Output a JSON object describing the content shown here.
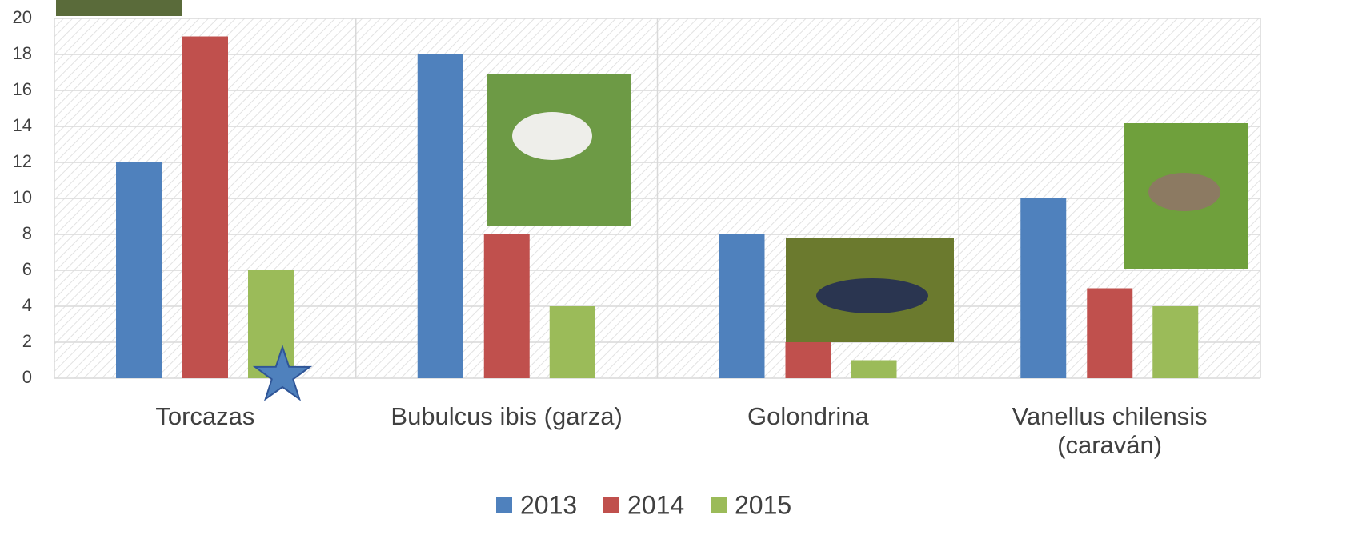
{
  "chart_data": {
    "type": "bar",
    "categories": [
      "Torcazas",
      "Bubulcus ibis (garza)",
      "Golondrina",
      "Vanellus chilensis (caraván)"
    ],
    "series": [
      {
        "name": "2013",
        "color": "#4f81bd",
        "values": [
          12,
          18,
          8,
          10
        ]
      },
      {
        "name": "2014",
        "color": "#c0504d",
        "values": [
          19,
          8,
          2,
          5
        ]
      },
      {
        "name": "2015",
        "color": "#9bbb59",
        "values": [
          6,
          4,
          1,
          4
        ]
      }
    ],
    "ylim": [
      0,
      20
    ],
    "yticks": [
      0,
      2,
      4,
      6,
      8,
      10,
      12,
      14,
      16,
      18,
      20
    ],
    "grid": true,
    "legend": "bottom"
  }
}
